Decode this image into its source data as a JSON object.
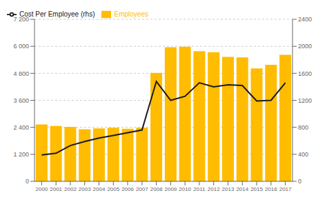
{
  "chart_data": {
    "type": "bar",
    "categories": [
      "2000",
      "2001",
      "2002",
      "2003",
      "2004",
      "2005",
      "2006",
      "2007",
      "2008",
      "2009",
      "2010",
      "2011",
      "2012",
      "2013",
      "2014",
      "2015",
      "2016",
      "2017"
    ],
    "series": [
      {
        "name": "Employees",
        "type": "bar",
        "color": "#FFBC00",
        "values": [
          2530,
          2460,
          2420,
          2310,
          2350,
          2380,
          2340,
          2380,
          4820,
          5960,
          5980,
          5780,
          5740,
          5530,
          5510,
          5020,
          5180,
          5620
        ]
      },
      {
        "name": "Cost Per Employee (rhs)",
        "type": "line",
        "color": "#1a1a1a",
        "axis": "y2",
        "values": [
          390,
          415,
          530,
          590,
          640,
          680,
          720,
          760,
          1480,
          1200,
          1260,
          1460,
          1400,
          1430,
          1420,
          1190,
          1200,
          1460
        ]
      }
    ],
    "ylim": [
      0,
      7200
    ],
    "yticks": [
      0,
      {
        "value": 1200,
        "label": "1 200"
      },
      {
        "value": 2400,
        "label": "2 400"
      },
      {
        "value": 3600,
        "label": "3 600"
      },
      {
        "value": 4800,
        "label": "4 800"
      },
      {
        "value": 6000,
        "label": "6 000"
      },
      {
        "value": 7200,
        "label": "7 200"
      }
    ],
    "y2lim": [
      0,
      2400
    ],
    "y2ticks": [
      0,
      400,
      800,
      1200,
      1600,
      2000,
      2400
    ],
    "grid": true,
    "legend": "upper left"
  }
}
